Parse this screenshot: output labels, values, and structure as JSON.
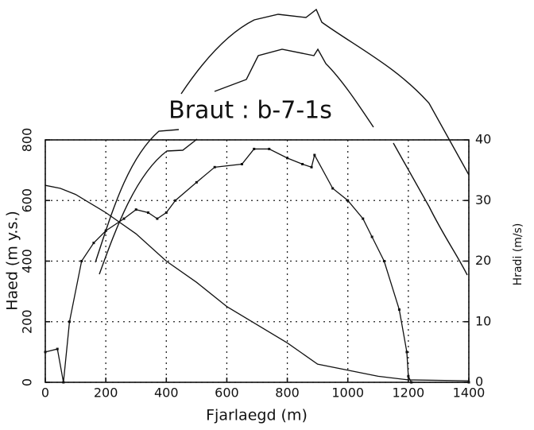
{
  "chart_data": {
    "type": "line",
    "title": "Braut : b-7-1s",
    "x_label": "Fjarlaegd (m)",
    "y_label": "Haed (m y.s.)",
    "y2_label": "Hradi (m/s)",
    "xlim": [
      0,
      1400
    ],
    "xticks": [
      0,
      200,
      400,
      600,
      800,
      1000,
      1200,
      1400
    ],
    "ylim": [
      0,
      800
    ],
    "yticks": [
      0,
      200,
      400,
      600,
      800
    ],
    "y2lim": [
      0,
      40
    ],
    "y2ticks": [
      0,
      10,
      20,
      30,
      40
    ],
    "grid": true,
    "series": [
      {
        "name": "Haed",
        "color": "#111111",
        "x": [
          0,
          50,
          100,
          200,
          300,
          400,
          500,
          600,
          700,
          800,
          900,
          1000,
          1100,
          1200,
          1400
        ],
        "values": [
          650,
          640,
          620,
          560,
          490,
          400,
          330,
          250,
          190,
          130,
          60,
          40,
          20,
          8,
          5
        ]
      },
      {
        "name": "Hradi",
        "color": "#111111",
        "axis": "y2",
        "x": [
          0,
          40,
          60,
          80,
          120,
          160,
          200,
          260,
          300,
          340,
          370,
          400,
          430,
          500,
          560,
          650,
          690,
          740,
          800,
          850,
          880,
          890,
          950,
          1000,
          1050,
          1080,
          1120,
          1170,
          1195,
          1200,
          1210,
          1400
        ],
        "values": [
          5,
          5.5,
          0,
          10,
          20,
          23,
          25,
          27,
          28.5,
          28,
          27,
          28,
          30,
          33,
          35.5,
          36,
          38.5,
          38.5,
          37,
          36,
          35.5,
          37.5,
          32,
          30,
          27,
          24,
          20,
          12,
          5,
          1,
          0,
          0
        ]
      }
    ]
  }
}
